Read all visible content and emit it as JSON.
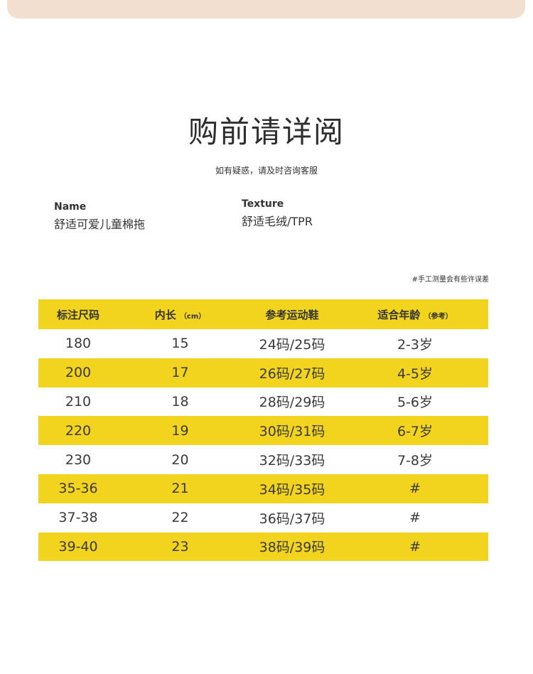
{
  "title": "购前请详阅",
  "subtitle": "如有疑惑，请及时咨询客服",
  "name": {
    "label": "Name",
    "value": "舒适可爱儿童棉拖"
  },
  "texture": {
    "label": "Texture",
    "value": "舒适毛绒/TPR"
  },
  "note": "#手工测量会有些许误差",
  "colors": {
    "header_bg": "#f2d31e",
    "banner": "#f3dfcf"
  },
  "table": {
    "headers": [
      {
        "main": "标注尺码",
        "sub": ""
      },
      {
        "main": "内长",
        "sub": "（cm）"
      },
      {
        "main": "参考运动鞋",
        "sub": ""
      },
      {
        "main": "适合年龄",
        "sub": "（参考）"
      }
    ],
    "rows": [
      [
        "180",
        "15",
        "24码/25码",
        "2-3岁"
      ],
      [
        "200",
        "17",
        "26码/27码",
        "4-5岁"
      ],
      [
        "210",
        "18",
        "28码/29码",
        "5-6岁"
      ],
      [
        "220",
        "19",
        "30码/31码",
        "6-7岁"
      ],
      [
        "230",
        "20",
        "32码/33码",
        "7-8岁"
      ],
      [
        "35-36",
        "21",
        "34码/35码",
        "#"
      ],
      [
        "37-38",
        "22",
        "36码/37码",
        "#"
      ],
      [
        "39-40",
        "23",
        "38码/39码",
        "#"
      ]
    ]
  }
}
